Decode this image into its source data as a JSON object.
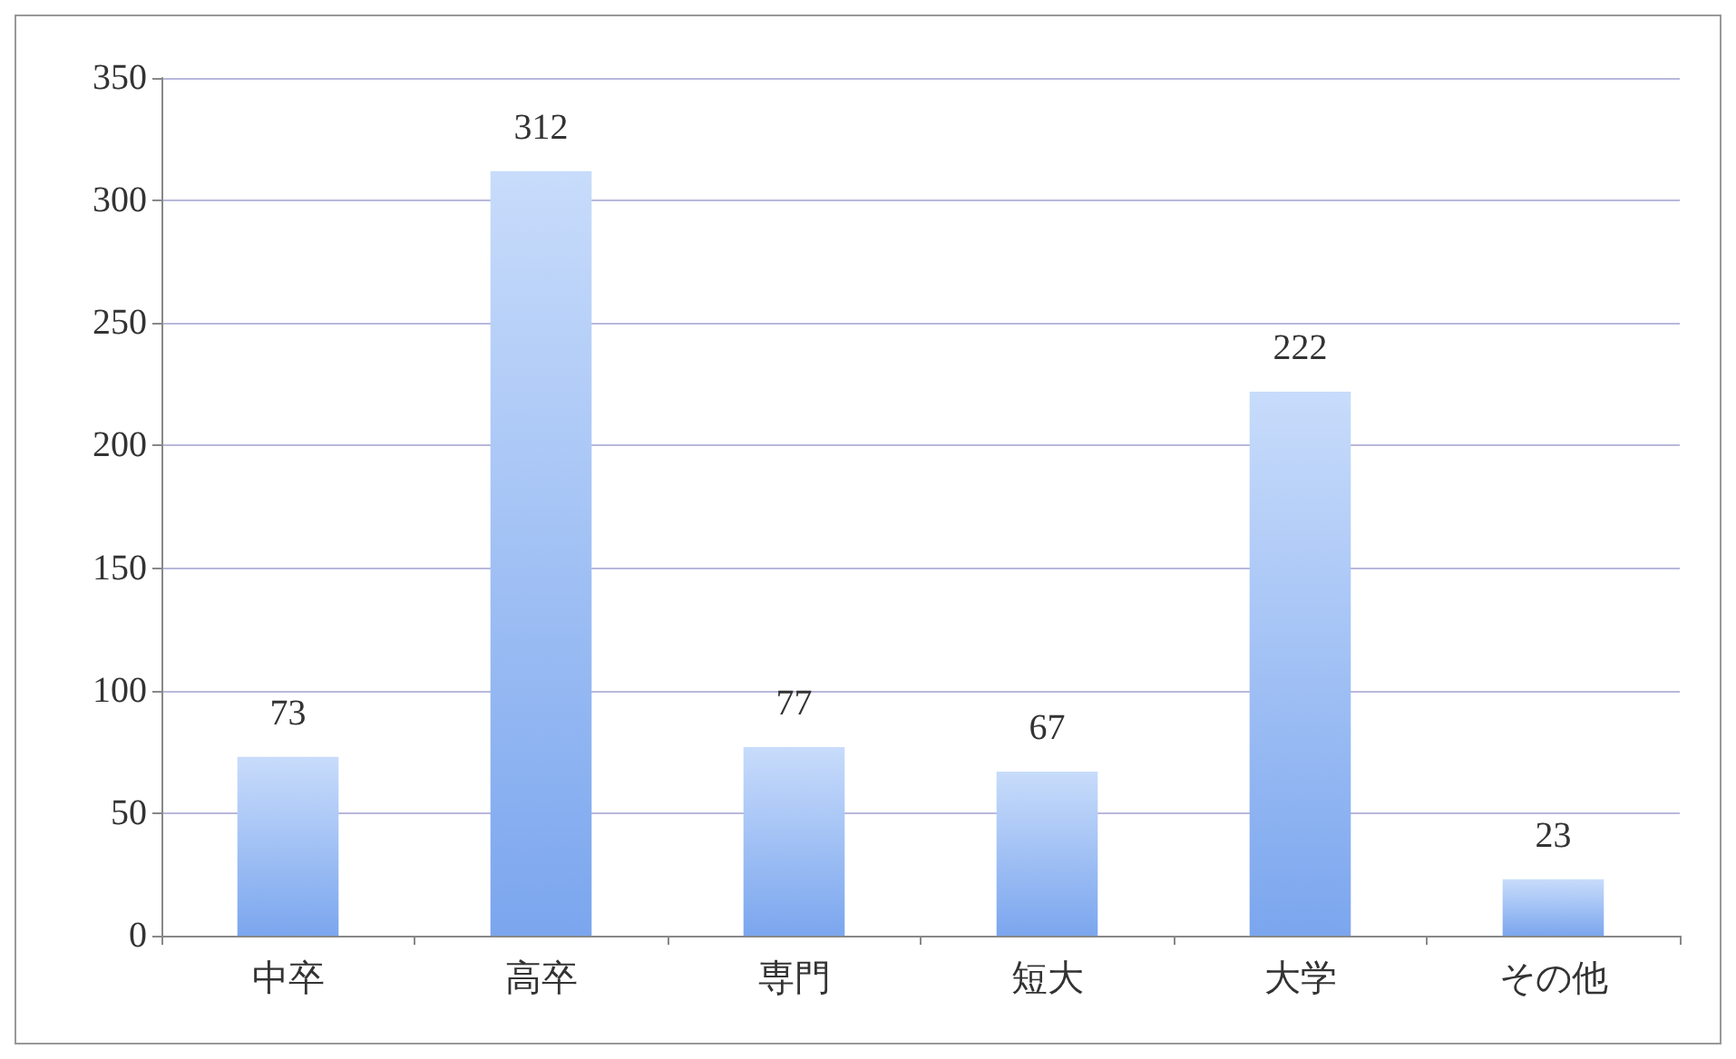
{
  "chart_data": {
    "type": "bar",
    "categories": [
      "中卒",
      "高卒",
      "専門",
      "短大",
      "大学",
      "その他"
    ],
    "values": [
      73,
      312,
      77,
      67,
      222,
      23
    ],
    "color": "#7ba6ee",
    "ylim": [
      0,
      350
    ],
    "yticks": [
      0,
      50,
      100,
      150,
      200,
      250,
      300,
      350
    ],
    "grid": "y",
    "data_labels": true
  }
}
